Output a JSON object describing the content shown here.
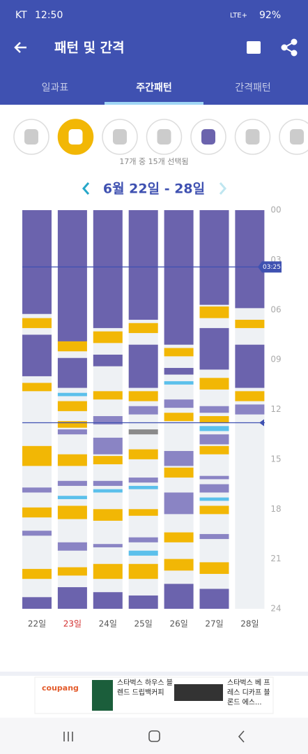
{
  "status_bar": {
    "carrier": "KT",
    "time": "12:50",
    "network": "LTE+",
    "battery": "92%"
  },
  "app_bar": {
    "title": "패턴 및 간격"
  },
  "tabs": {
    "items": [
      "일과표",
      "주간패턴",
      "간격패턴"
    ],
    "active": 1
  },
  "filter_caption": "17개 중 15개 선택됨",
  "chart_data": {
    "type": "timeline",
    "title": "6월 22일 - 28일",
    "categories": [
      "22일",
      "23일",
      "24일",
      "25일",
      "26일",
      "27일",
      "28일"
    ],
    "highlight_category": 1,
    "highlight_color": "#d32f2f",
    "ylim": [
      0,
      24
    ],
    "yticks": [
      {
        "value": 0,
        "label": "00"
      },
      {
        "value": 3,
        "label": "03"
      },
      {
        "value": 6,
        "label": "06"
      },
      {
        "value": 9,
        "label": "09"
      },
      {
        "value": 12,
        "label": "12"
      },
      {
        "value": 15,
        "label": "15"
      },
      {
        "value": 18,
        "label": "18"
      },
      {
        "value": 21,
        "label": "21"
      },
      {
        "value": 24,
        "label": "24"
      }
    ],
    "time_lines": [
      {
        "value": 3.42,
        "label": "03:25"
      },
      {
        "value": 12.8
      }
    ],
    "days": [
      {
        "segments": [
          [
            0,
            6.25,
            "#6b63ad"
          ],
          [
            6.5,
            7.1,
            "#f2b705"
          ],
          [
            7.5,
            10.0,
            "#6b63ad"
          ],
          [
            10.4,
            10.9,
            "#f2b705"
          ],
          [
            14.2,
            15.4,
            "#f2b705"
          ],
          [
            16.7,
            17.0,
            "#8a84c4"
          ],
          [
            17.9,
            18.5,
            "#f2b705"
          ],
          [
            19.3,
            19.6,
            "#8a84c4"
          ],
          [
            21.6,
            22.2,
            "#f2b705"
          ],
          [
            23.3,
            24,
            "#6b63ad"
          ]
        ]
      },
      {
        "segments": [
          [
            0,
            7.9,
            "#6b63ad"
          ],
          [
            7.9,
            8.5,
            "#f2b705"
          ],
          [
            8.9,
            10.7,
            "#6b63ad"
          ],
          [
            11.0,
            11.2,
            "#5bc0eb"
          ],
          [
            11.5,
            12.1,
            "#f2b705"
          ],
          [
            12.7,
            13.1,
            "#f2b705"
          ],
          [
            13.2,
            13.5,
            "#8a84c4"
          ],
          [
            14.7,
            15.4,
            "#f2b705"
          ],
          [
            16.3,
            16.6,
            "#8a84c4"
          ],
          [
            17.2,
            17.4,
            "#5bc0eb"
          ],
          [
            17.8,
            18.6,
            "#f2b705"
          ],
          [
            20.0,
            20.5,
            "#8a84c4"
          ],
          [
            21.5,
            22.0,
            "#f2b705"
          ],
          [
            22.7,
            24,
            "#6b63ad"
          ]
        ]
      },
      {
        "segments": [
          [
            0,
            7.1,
            "#6b63ad"
          ],
          [
            7.3,
            8.0,
            "#f2b705"
          ],
          [
            8.7,
            9.4,
            "#6b63ad"
          ],
          [
            10.9,
            11.4,
            "#f2b705"
          ],
          [
            12.4,
            12.9,
            "#8a84c4"
          ],
          [
            13.7,
            14.7,
            "#8a84c4"
          ],
          [
            14.8,
            15.3,
            "#f2b705"
          ],
          [
            16.3,
            16.6,
            "#8a84c4"
          ],
          [
            16.8,
            17.0,
            "#5bc0eb"
          ],
          [
            18.0,
            18.7,
            "#f2b705"
          ],
          [
            20.1,
            20.3,
            "#8a84c4"
          ],
          [
            21.3,
            22.2,
            "#f2b705"
          ],
          [
            23.0,
            24,
            "#6b63ad"
          ]
        ]
      },
      {
        "segments": [
          [
            0,
            6.6,
            "#6b63ad"
          ],
          [
            6.8,
            7.4,
            "#f2b705"
          ],
          [
            8.1,
            10.7,
            "#6b63ad"
          ],
          [
            10.9,
            11.5,
            "#f2b705"
          ],
          [
            11.8,
            12.3,
            "#8a84c4"
          ],
          [
            13.2,
            13.5,
            "#8a8a8a"
          ],
          [
            14.4,
            15.0,
            "#f2b705"
          ],
          [
            16.1,
            16.4,
            "#8a84c4"
          ],
          [
            16.6,
            16.8,
            "#5bc0eb"
          ],
          [
            18.0,
            18.4,
            "#f2b705"
          ],
          [
            19.7,
            20.0,
            "#8a84c4"
          ],
          [
            20.5,
            20.8,
            "#5bc0eb"
          ],
          [
            21.3,
            22.2,
            "#f2b705"
          ],
          [
            23.2,
            24,
            "#6b63ad"
          ]
        ]
      },
      {
        "segments": [
          [
            0,
            8.1,
            "#6b63ad"
          ],
          [
            8.3,
            8.8,
            "#f2b705"
          ],
          [
            9.5,
            9.9,
            "#6b63ad"
          ],
          [
            10.3,
            10.5,
            "#5bc0eb"
          ],
          [
            11.4,
            11.9,
            "#8a84c4"
          ],
          [
            12.2,
            12.7,
            "#f2b705"
          ],
          [
            14.5,
            15.4,
            "#8a84c4"
          ],
          [
            15.5,
            16.1,
            "#f2b705"
          ],
          [
            17.0,
            18.3,
            "#8a84c4"
          ],
          [
            19.4,
            20.0,
            "#f2b705"
          ],
          [
            21.0,
            21.7,
            "#f2b705"
          ],
          [
            22.5,
            24,
            "#6b63ad"
          ]
        ]
      },
      {
        "segments": [
          [
            0,
            5.7,
            "#6b63ad"
          ],
          [
            5.8,
            6.5,
            "#f2b705"
          ],
          [
            7.1,
            9.6,
            "#6b63ad"
          ],
          [
            10.1,
            10.8,
            "#f2b705"
          ],
          [
            11.8,
            12.2,
            "#8a84c4"
          ],
          [
            12.4,
            12.8,
            "#f2b705"
          ],
          [
            13.0,
            13.3,
            "#5bc0eb"
          ],
          [
            13.5,
            14.1,
            "#8a84c4"
          ],
          [
            14.2,
            14.7,
            "#f2b705"
          ],
          [
            16.0,
            16.2,
            "#8a84c4"
          ],
          [
            16.5,
            17.0,
            "#8a84c4"
          ],
          [
            17.3,
            17.5,
            "#5bc0eb"
          ],
          [
            17.8,
            18.3,
            "#f2b705"
          ],
          [
            19.5,
            19.8,
            "#8a84c4"
          ],
          [
            21.2,
            21.9,
            "#f2b705"
          ],
          [
            22.8,
            24,
            "#6b63ad"
          ]
        ]
      },
      {
        "segments": [
          [
            0,
            5.9,
            "#6b63ad"
          ],
          [
            6.6,
            7.1,
            "#f2b705"
          ],
          [
            8.1,
            10.7,
            "#6b63ad"
          ],
          [
            10.9,
            11.5,
            "#f2b705"
          ],
          [
            11.7,
            12.3,
            "#8a84c4"
          ]
        ]
      }
    ]
  },
  "ad": {
    "brand": "coupang",
    "item1": "스타벅스 하우스 블렌드 드립백커피",
    "item2": "스타벅스 베 프레스 디카프 블론드 에스..."
  }
}
